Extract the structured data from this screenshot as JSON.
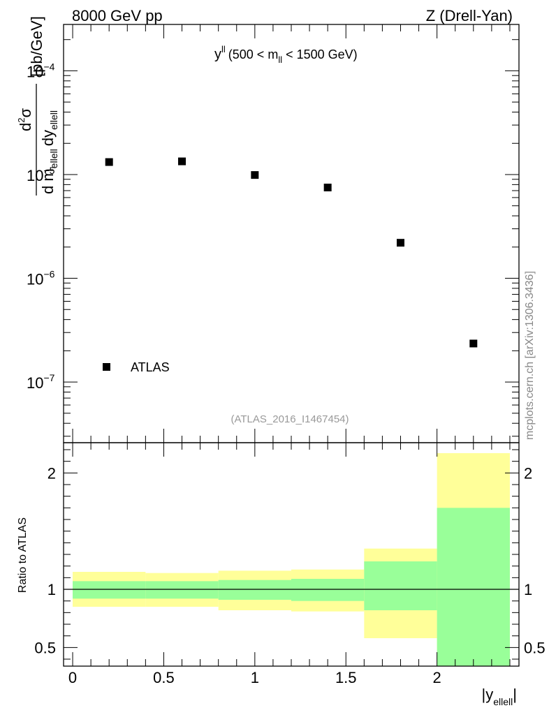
{
  "header": {
    "left": "8000 GeV pp",
    "right": "Z (Drell-Yan)"
  },
  "side_label": "mcplots.cern.ch [arXiv:1306.3436]",
  "chart_data": [
    {
      "type": "scatter",
      "title_main": "y",
      "title_sup": "ll",
      "title_rest_a": "(500 < m",
      "title_sub": "ll",
      "title_rest_b": " < 1500 GeV)",
      "ylabel": {
        "num_d": "d",
        "num_sup": "2",
        "num_sigma": "σ",
        "den_d1": "d m",
        "den_sub1": "ellell",
        "den_d2": "dy",
        "den_sub2": "ellell",
        "unit": "[pb/GeV]"
      },
      "yscale": "log",
      "ylim": [
        2.6e-08,
        0.00028
      ],
      "xlim": [
        -0.05,
        2.45
      ],
      "y_ticks": [
        {
          "value": 1e-07,
          "base": "10",
          "exp": "−7"
        },
        {
          "value": 1e-06,
          "base": "10",
          "exp": "−6"
        },
        {
          "value": 1e-05,
          "base": "10",
          "exp": "−5"
        },
        {
          "value": 0.0001,
          "base": "10",
          "exp": "−4"
        }
      ],
      "series": [
        {
          "name": "ATLAS",
          "x": [
            0.2,
            0.6,
            1.0,
            1.4,
            1.8,
            2.2
          ],
          "y": [
            1.32e-05,
            1.34e-05,
            9.9e-06,
            7.5e-06,
            2.2e-06,
            2.35e-07
          ]
        }
      ],
      "watermark": "(ATLAS_2016_I1467454)",
      "legend_position": "bottom-left"
    },
    {
      "type": "area",
      "ylabel": "Ratio to ATLAS",
      "ylim": [
        0.34,
        2.26
      ],
      "xlim": [
        -0.05,
        2.45
      ],
      "y_ticks": [
        {
          "value": 0.5,
          "label": "0.5"
        },
        {
          "value": 1,
          "label": "1"
        },
        {
          "value": 2,
          "label": "2"
        }
      ],
      "x_ticks": [
        {
          "value": 0,
          "label": "0"
        },
        {
          "value": 0.5,
          "label": "0.5"
        },
        {
          "value": 1,
          "label": "1"
        },
        {
          "value": 1.5,
          "label": "1.5"
        },
        {
          "value": 2,
          "label": "2"
        }
      ],
      "xlabel": {
        "main": "|y",
        "sub": "ellell",
        "end": "|"
      },
      "reference_line": 1,
      "bins": [
        {
          "x0": 0.0,
          "x1": 0.4,
          "green": [
            0.92,
            1.07
          ],
          "yellow": [
            0.85,
            1.15
          ]
        },
        {
          "x0": 0.4,
          "x1": 0.8,
          "green": [
            0.92,
            1.07
          ],
          "yellow": [
            0.85,
            1.14
          ]
        },
        {
          "x0": 0.8,
          "x1": 1.2,
          "green": [
            0.91,
            1.08
          ],
          "yellow": [
            0.82,
            1.16
          ]
        },
        {
          "x0": 1.2,
          "x1": 1.6,
          "green": [
            0.9,
            1.09
          ],
          "yellow": [
            0.81,
            1.17
          ]
        },
        {
          "x0": 1.6,
          "x1": 2.0,
          "green": [
            0.82,
            1.24
          ],
          "yellow": [
            0.58,
            1.35
          ]
        },
        {
          "x0": 2.0,
          "x1": 2.4,
          "green": [
            0.34,
            1.7
          ],
          "yellow": [
            0.34,
            2.17
          ]
        }
      ],
      "colors": {
        "green": "#99ff99",
        "yellow": "#ffff99"
      }
    }
  ]
}
